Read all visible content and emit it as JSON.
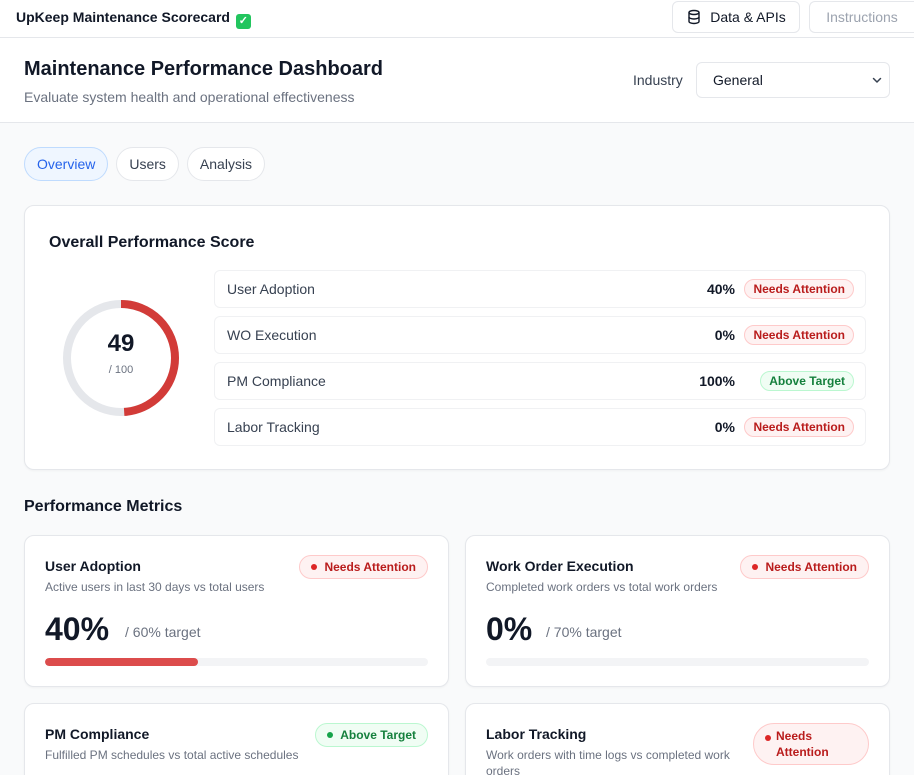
{
  "app": {
    "title": "UpKeep Maintenance Scorecard",
    "title_emoji": "✓"
  },
  "topbar": {
    "data_label": "Data & APIs",
    "data_icon": "database-icon",
    "instructions_label": "Instructions"
  },
  "header": {
    "title": "Maintenance Performance Dashboard",
    "subtitle": "Evaluate system health and operational effectiveness",
    "industry_label": "Industry",
    "industry_value": "General"
  },
  "tabs": [
    {
      "label": "Overview",
      "active": true
    },
    {
      "label": "Users",
      "active": false
    },
    {
      "label": "Analysis",
      "active": false
    }
  ],
  "overall": {
    "title": "Overall Performance Score",
    "score": "49",
    "max": "/ 100",
    "score_fraction": 0.49,
    "gauge_color": "#d23b38",
    "track_color": "#e5e7eb",
    "rows": [
      {
        "label": "User Adoption",
        "value": "40%",
        "status": "Needs Attention",
        "tone": "red"
      },
      {
        "label": "WO Execution",
        "value": "0%",
        "status": "Needs Attention",
        "tone": "red"
      },
      {
        "label": "PM Compliance",
        "value": "100%",
        "status": "Above Target",
        "tone": "green"
      },
      {
        "label": "Labor Tracking",
        "value": "0%",
        "status": "Needs Attention",
        "tone": "red"
      }
    ]
  },
  "metrics_title": "Performance Metrics",
  "metrics": [
    {
      "title": "User Adoption",
      "desc": "Active users in last 30 days vs total users",
      "status": "Needs Attention",
      "tone": "red",
      "value": "40%",
      "target": "/ 60% target",
      "progress": 0.4
    },
    {
      "title": "Work Order Execution",
      "desc": "Completed work orders vs total work orders",
      "status": "Needs Attention",
      "tone": "red",
      "value": "0%",
      "target": "/ 70% target",
      "progress": 0
    },
    {
      "title": "PM Compliance",
      "desc": "Fulfilled PM schedules vs total active schedules",
      "status": "Above Target",
      "tone": "green"
    },
    {
      "title": "Labor Tracking",
      "desc": "Work orders with time logs vs completed work orders",
      "status": "Needs Attention",
      "tone": "red"
    }
  ],
  "colors": {
    "accent": "#2563eb",
    "danger": "#dc2626",
    "success": "#16a34a",
    "progress_fill": "#dc4c4c"
  }
}
